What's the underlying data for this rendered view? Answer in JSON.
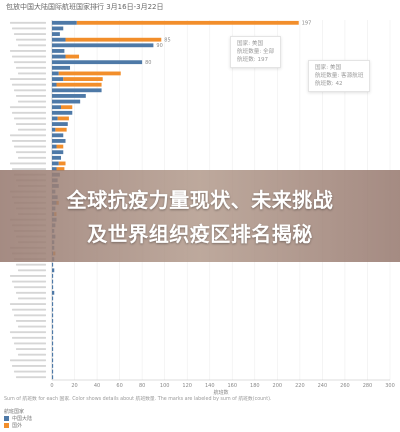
{
  "chart_data": {
    "type": "bar",
    "orientation": "horizontal",
    "title": "包放中国大陆国际航班国家排行 3月16日-3月22日",
    "xlabel": "航班数",
    "xlim": [
      0,
      300
    ],
    "xticks": [
      "0",
      "20",
      "40",
      "60",
      "80",
      "100",
      "120",
      "140",
      "160",
      "180",
      "200",
      "220",
      "240",
      "260",
      "280",
      "300"
    ],
    "grid": true,
    "legend_title": "航班国家",
    "legend_position": "bottom-left",
    "series": [
      {
        "name": "中国大陆",
        "color": "#4e79a7"
      },
      {
        "name": "国外",
        "color": "#f28e2b"
      }
    ],
    "values": [
      [
        22,
        197
      ],
      [
        10,
        0
      ],
      [
        7,
        0
      ],
      [
        12,
        85
      ],
      [
        90,
        0
      ],
      [
        11,
        0
      ],
      [
        12,
        12
      ],
      [
        80,
        0
      ],
      [
        16,
        0
      ],
      [
        6,
        55
      ],
      [
        10,
        35
      ],
      [
        4,
        40
      ],
      [
        44,
        0
      ],
      [
        30,
        0
      ],
      [
        25,
        0
      ],
      [
        8,
        10
      ],
      [
        18,
        0
      ],
      [
        5,
        10
      ],
      [
        14,
        0
      ],
      [
        3,
        10
      ],
      [
        10,
        0
      ],
      [
        12,
        0
      ],
      [
        4,
        6
      ],
      [
        10,
        0
      ],
      [
        8,
        0
      ],
      [
        6,
        6
      ],
      [
        4,
        7
      ],
      [
        7,
        0
      ],
      [
        5,
        0
      ],
      [
        6,
        0
      ],
      [
        3,
        0
      ],
      [
        5,
        0
      ],
      [
        4,
        2
      ],
      [
        3,
        0
      ],
      [
        2,
        2
      ],
      [
        4,
        0
      ],
      [
        3,
        0
      ],
      [
        2,
        0
      ],
      [
        3,
        0
      ],
      [
        2,
        0
      ],
      [
        2,
        0
      ],
      [
        1,
        2
      ],
      [
        2,
        0
      ],
      [
        1,
        0
      ],
      [
        2,
        0
      ],
      [
        1,
        0
      ],
      [
        1,
        0
      ],
      [
        1,
        0
      ],
      [
        2,
        0
      ],
      [
        1,
        0
      ],
      [
        1,
        0
      ],
      [
        1,
        0
      ],
      [
        1,
        0
      ],
      [
        1,
        0
      ],
      [
        1,
        0
      ],
      [
        1,
        0
      ],
      [
        1,
        0
      ],
      [
        1,
        0
      ],
      [
        1,
        0
      ],
      [
        1,
        0
      ],
      [
        1,
        0
      ],
      [
        1,
        0
      ],
      [
        1,
        0
      ],
      [
        1,
        0
      ]
    ],
    "data_labels": [
      {
        "row": 0,
        "value": "197"
      },
      {
        "row": 3,
        "value": "85"
      },
      {
        "row": 4,
        "value": "90"
      },
      {
        "row": 7,
        "value": "80"
      }
    ],
    "tooltips": [
      {
        "lines": [
          "国家: 美国",
          "航班数量: 全部",
          "航班数: 197"
        ]
      },
      {
        "lines": [
          "国家: 美国",
          "航班数量: 客源航班",
          "航班数: 42"
        ]
      }
    ]
  },
  "banner": {
    "line1": "全球抗疫力量现状、未来挑战",
    "line2": "及世界组织疫区排名揭秘"
  },
  "caption": "Sum of 航班数 for each 国家. Color shows details about 航班数量. The marks are labeled by sum of 航班数(count).",
  "colors": {
    "blue": "#4e79a7",
    "orange": "#f28e2b",
    "grid": "#eeeeee",
    "axis": "#bbbbbb",
    "label": "#888888"
  }
}
